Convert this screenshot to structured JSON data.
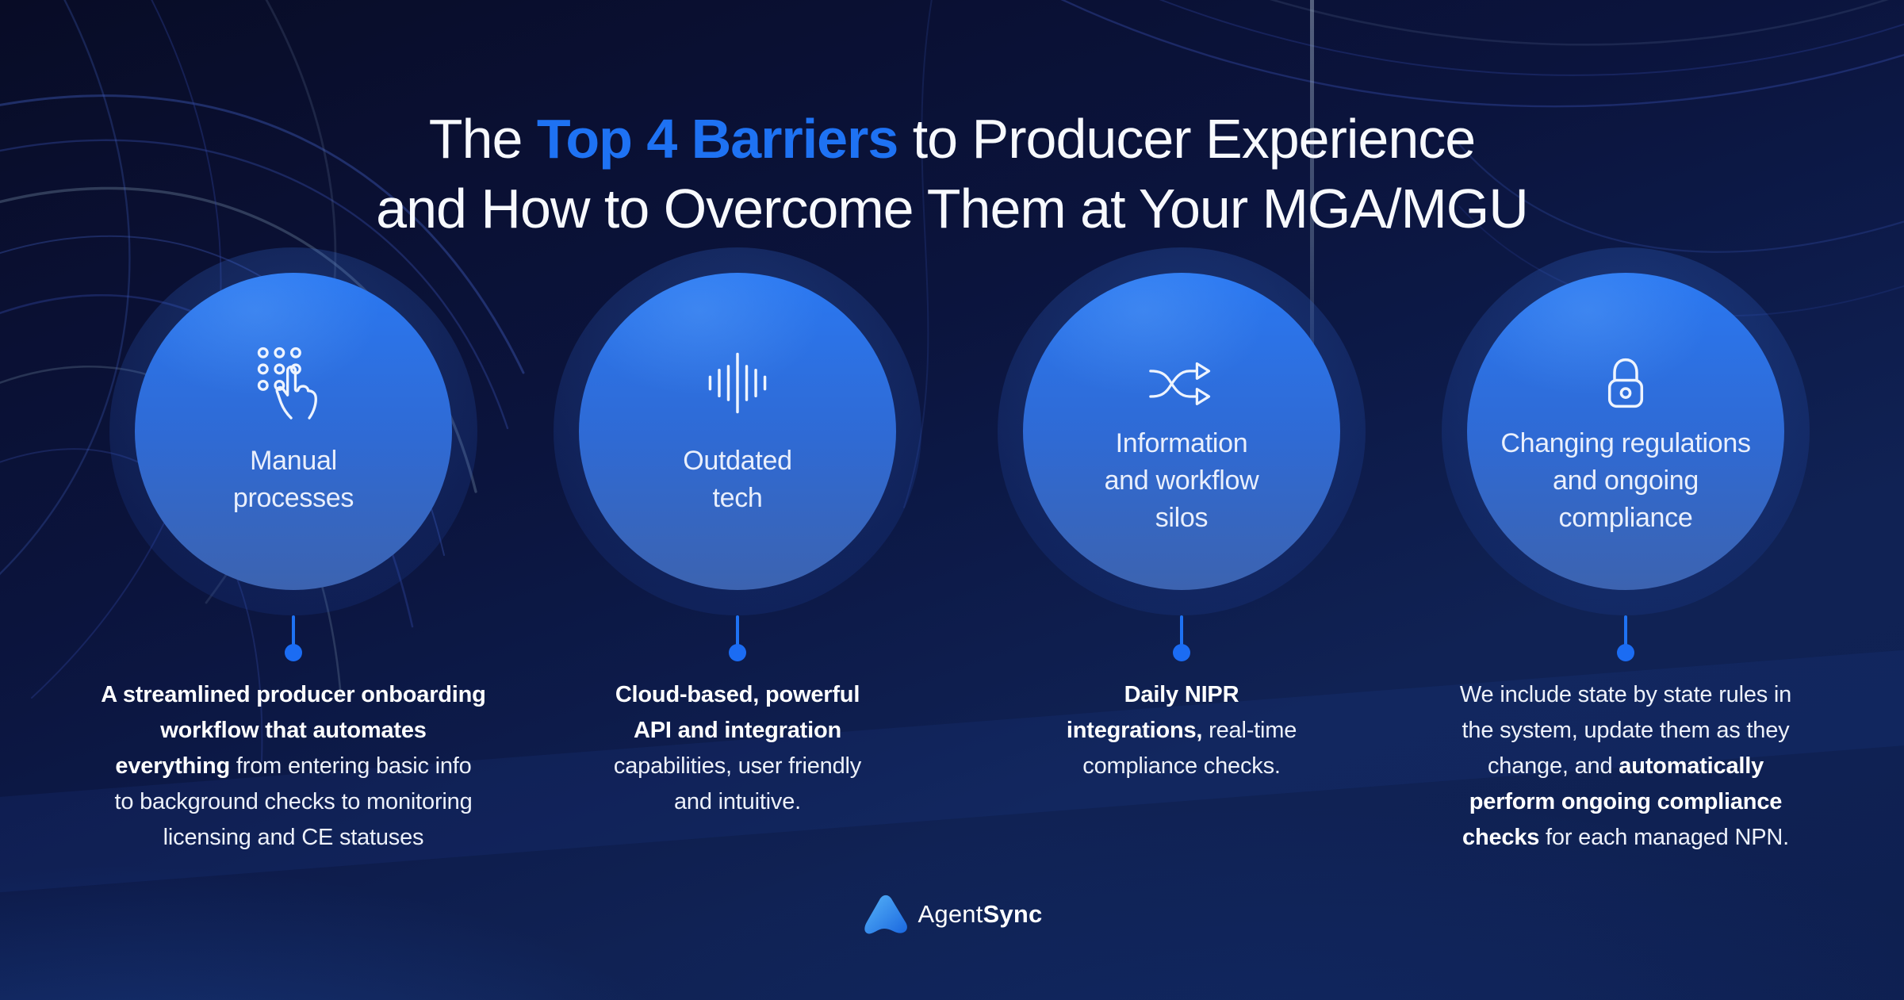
{
  "title": {
    "lines": [
      [
        {
          "t": "The "
        },
        {
          "t": "Top 4 Barriers",
          "b": 1,
          "a": 1
        },
        {
          "t": " to Producer Experience"
        }
      ],
      [
        {
          "t": "and How to Overcome Them at Your MGA/MGU"
        }
      ]
    ]
  },
  "colors": {
    "accent": "#1e72f3",
    "dot": "#1b6cf3",
    "circle_top": "#2a78f2",
    "circle_bottom": "#3c63b0",
    "background_top": "#090d2a",
    "background_bottom": "#0f2153"
  },
  "barriers": [
    {
      "icon": "keypad-press-icon",
      "label_lines": [
        "Manual",
        "processes"
      ],
      "desc_lines": [
        [
          {
            "t": "A streamlined producer onboarding",
            "b": 1
          }
        ],
        [
          {
            "t": "workflow that automates",
            "b": 1
          }
        ],
        [
          {
            "t": "everything",
            "b": 1
          },
          {
            "t": " from entering basic info"
          }
        ],
        [
          {
            "t": "to background checks to monitoring"
          }
        ],
        [
          {
            "t": "licensing and CE statuses"
          }
        ]
      ]
    },
    {
      "icon": "sound-wave-icon",
      "label_lines": [
        "Outdated",
        "tech"
      ],
      "desc_lines": [
        [
          {
            "t": "Cloud-based, powerful",
            "b": 1
          }
        ],
        [
          {
            "t": "API and integration",
            "b": 1
          }
        ],
        [
          {
            "t": "capabilities, user friendly"
          }
        ],
        [
          {
            "t": "and intuitive."
          }
        ]
      ]
    },
    {
      "icon": "shuffle-icon",
      "label_lines": [
        "Information",
        "and workflow",
        "silos"
      ],
      "desc_lines": [
        [
          {
            "t": "Daily NIPR",
            "b": 1
          }
        ],
        [
          {
            "t": "integrations,",
            "b": 1
          },
          {
            "t": " real-time"
          }
        ],
        [
          {
            "t": "compliance checks."
          }
        ]
      ]
    },
    {
      "icon": "padlock-icon",
      "label_lines": [
        "Changing regulations",
        "and ongoing",
        "compliance"
      ],
      "desc_lines": [
        [
          {
            "t": "We include state by state rules in"
          }
        ],
        [
          {
            "t": "the system, update them as they"
          }
        ],
        [
          {
            "t": "change, and "
          },
          {
            "t": "automatically",
            "b": 1
          }
        ],
        [
          {
            "t": "perform ongoing compliance",
            "b": 1
          }
        ],
        [
          {
            "t": "checks",
            "b": 1
          },
          {
            "t": " for each managed NPN."
          }
        ]
      ]
    }
  ],
  "footer": {
    "brand_prefix": "Agent",
    "brand_suffix": "Sync"
  }
}
